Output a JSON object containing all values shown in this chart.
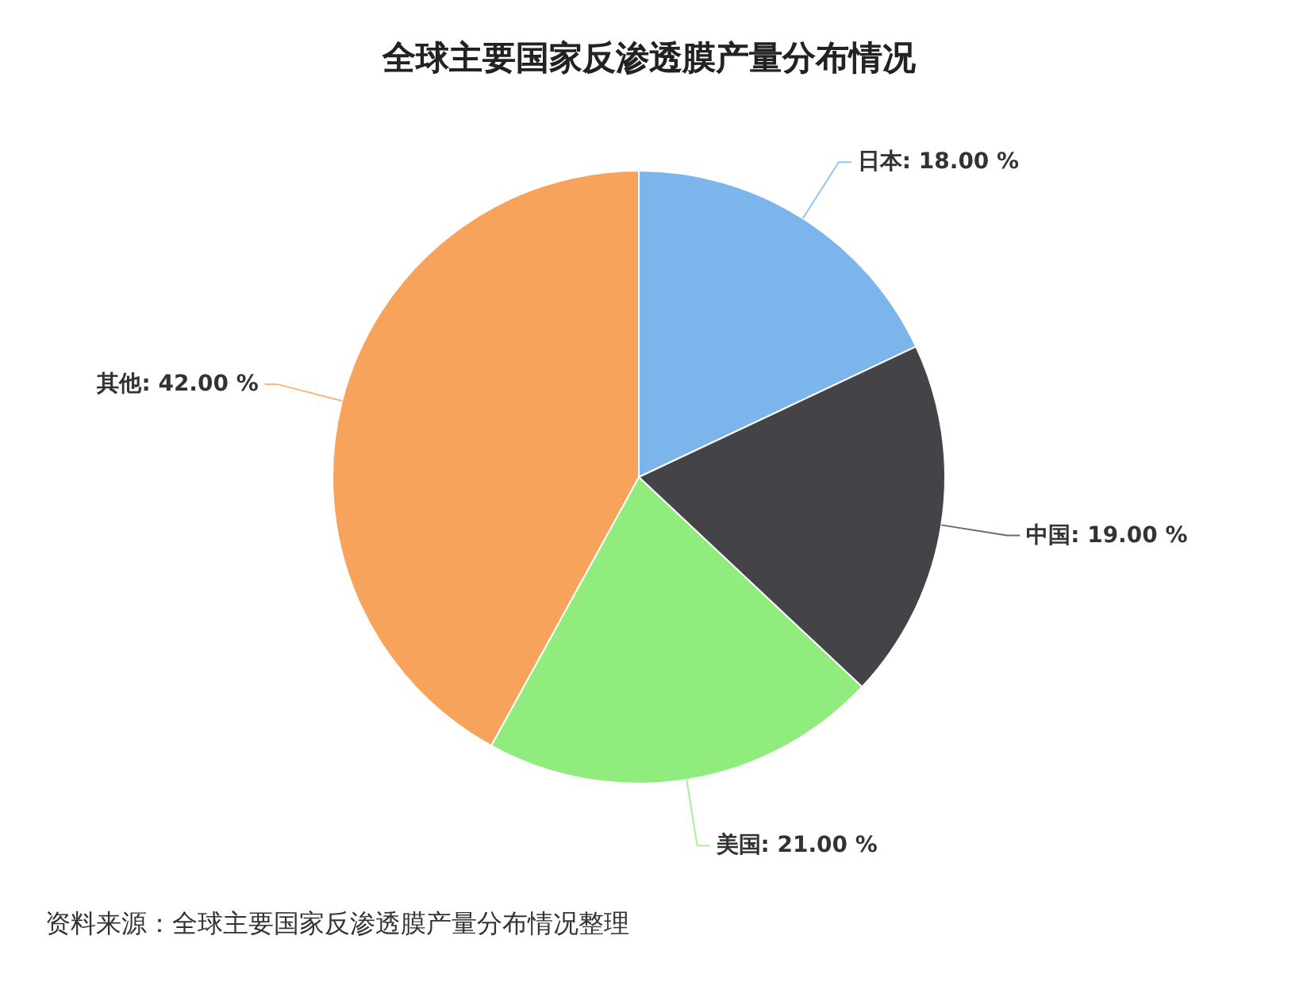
{
  "chart_data": {
    "type": "pie",
    "title": "全球主要国家反渗透膜产量分布情况",
    "categories": [
      "日本",
      "中国",
      "美国",
      "其他"
    ],
    "values": [
      18,
      19,
      21,
      42
    ],
    "colors": [
      "#7cb5ec",
      "#434348",
      "#90ed7d",
      "#f7a35c"
    ],
    "value_labels": [
      "18.00 %",
      "19.00 %",
      "21.00 %",
      "42.00 %"
    ],
    "annotations": [
      "资料来源：全球主要国家反渗透膜产量分布情况整理"
    ]
  }
}
